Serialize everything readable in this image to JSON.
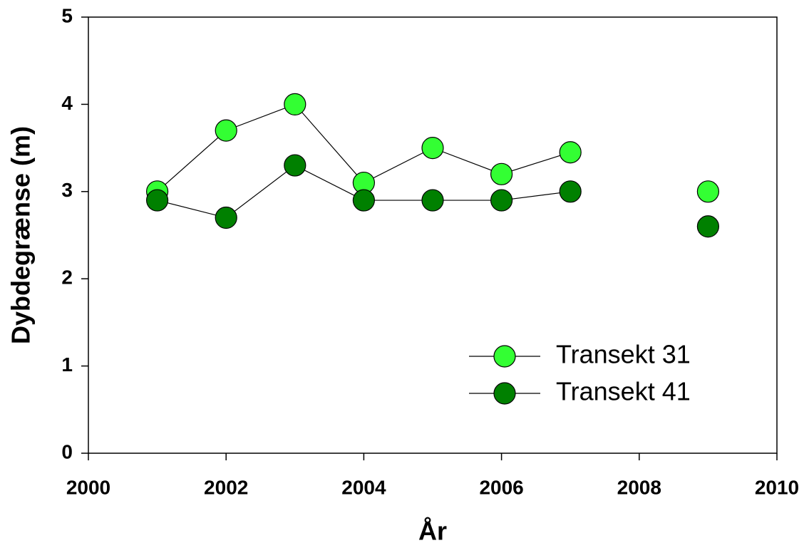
{
  "chart_data": {
    "type": "line",
    "x_label": "År",
    "y_label": "Dybdegrænse (m)",
    "x": [
      2001,
      2002,
      2003,
      2004,
      2005,
      2006,
      2007,
      2008,
      2009
    ],
    "series": [
      {
        "name": "Transekt 31",
        "color": "#33ff33",
        "values": [
          3.0,
          3.7,
          4.0,
          3.1,
          3.5,
          3.2,
          3.45,
          null,
          3.0
        ]
      },
      {
        "name": "Transekt 41",
        "color": "#008000",
        "values": [
          2.9,
          2.7,
          3.3,
          2.9,
          2.9,
          2.9,
          3.0,
          null,
          2.6
        ]
      }
    ],
    "xlim": [
      2000,
      2010
    ],
    "xticks": [
      2000,
      2002,
      2004,
      2006,
      2008,
      2010
    ],
    "ylim": [
      0,
      5
    ],
    "yticks": [
      0,
      1,
      2,
      3,
      4,
      5
    ],
    "legend": "lower right"
  }
}
